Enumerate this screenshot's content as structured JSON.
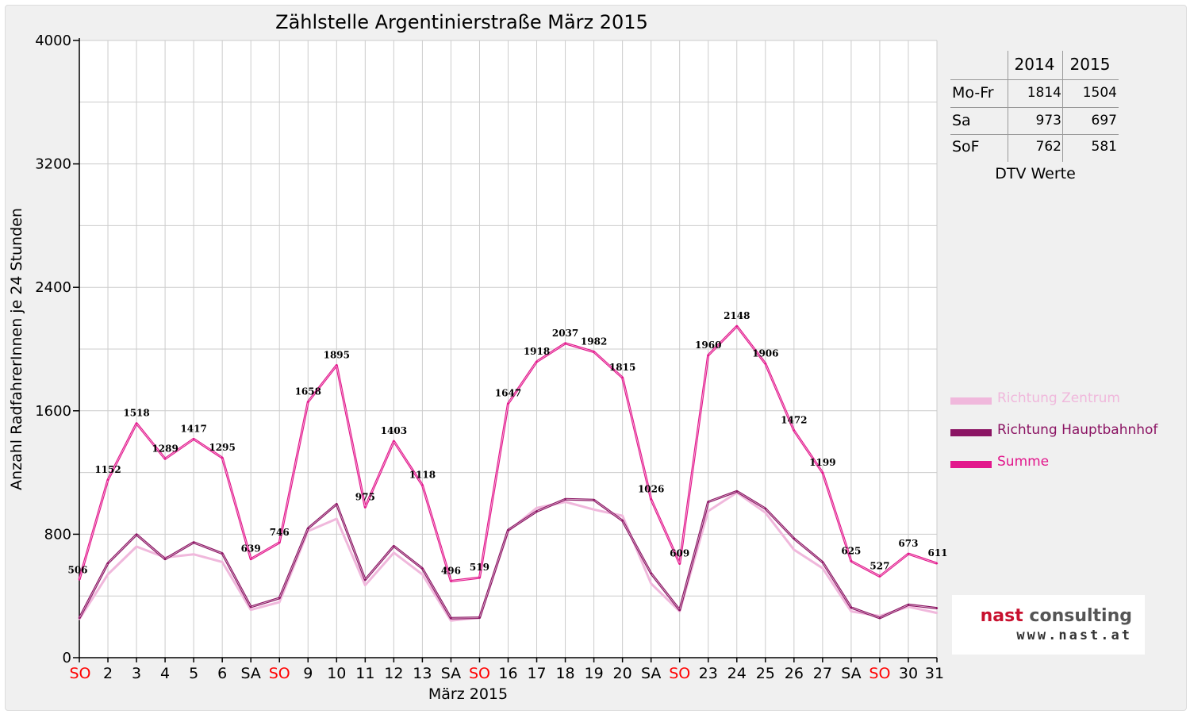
{
  "colors": {
    "zentrum": "#f0b8dc",
    "hauptbahnhof": "#8b1463",
    "summe": "#e2178c",
    "weekend_label": "#ff0000",
    "grid": "#cccccc"
  },
  "table": {
    "columns": [
      "",
      "2014",
      "2015"
    ],
    "rows": [
      {
        "label": "Mo-Fr",
        "v2014": "1814",
        "v2015": "1504"
      },
      {
        "label": "Sa",
        "v2014": "973",
        "v2015": "697"
      },
      {
        "label": "SoF",
        "v2014": "762",
        "v2015": "581"
      }
    ],
    "caption": "DTV Werte"
  },
  "logo": {
    "name_part1": "nast",
    "name_part2": " consulting",
    "url": "www.nast.at"
  },
  "chart_data": {
    "type": "line",
    "title": "Zählstelle Argentinierstraße März 2015",
    "xlabel": "März 2015",
    "ylabel": "Anzahl RadfahrerInnen je 24 Stunden",
    "ylim": [
      0,
      4000
    ],
    "yticks": [
      0,
      800,
      1600,
      2400,
      3200,
      4000
    ],
    "grid": true,
    "legend_position": "right",
    "categories": [
      "SO",
      "2",
      "3",
      "4",
      "5",
      "6",
      "SA",
      "SO",
      "9",
      "10",
      "11",
      "12",
      "13",
      "SA",
      "SO",
      "16",
      "17",
      "18",
      "19",
      "20",
      "SA",
      "SO",
      "23",
      "24",
      "25",
      "26",
      "27",
      "SA",
      "SO",
      "30",
      "31"
    ],
    "weekend_categories": [
      "SO"
    ],
    "series": [
      {
        "name": "Richtung Zentrum",
        "color_key": "zentrum",
        "values": [
          250,
          540,
          720,
          650,
          670,
          620,
          310,
          360,
          820,
          900,
          470,
          680,
          540,
          240,
          260,
          820,
          970,
          1010,
          960,
          920,
          480,
          300,
          950,
          1070,
          940,
          700,
          580,
          300,
          270,
          330,
          290
        ]
      },
      {
        "name": "Richtung Hauptbahnhof",
        "color_key": "hauptbahnhof",
        "values": [
          256,
          612,
          798,
          639,
          747,
          675,
          329,
          386,
          838,
          995,
          505,
          723,
          578,
          256,
          259,
          827,
          948,
          1027,
          1022,
          888,
          546,
          309,
          1010,
          1078,
          966,
          772,
          619,
          325,
          257,
          343,
          321
        ]
      },
      {
        "name": "Summe",
        "color_key": "summe",
        "values": [
          506,
          1152,
          1518,
          1289,
          1417,
          1295,
          639,
          746,
          1658,
          1895,
          975,
          1403,
          1118,
          496,
          519,
          1647,
          1918,
          2037,
          1982,
          1815,
          1026,
          609,
          1960,
          2148,
          1906,
          1472,
          1199,
          625,
          527,
          673,
          611
        ],
        "data_labels": true
      }
    ]
  }
}
